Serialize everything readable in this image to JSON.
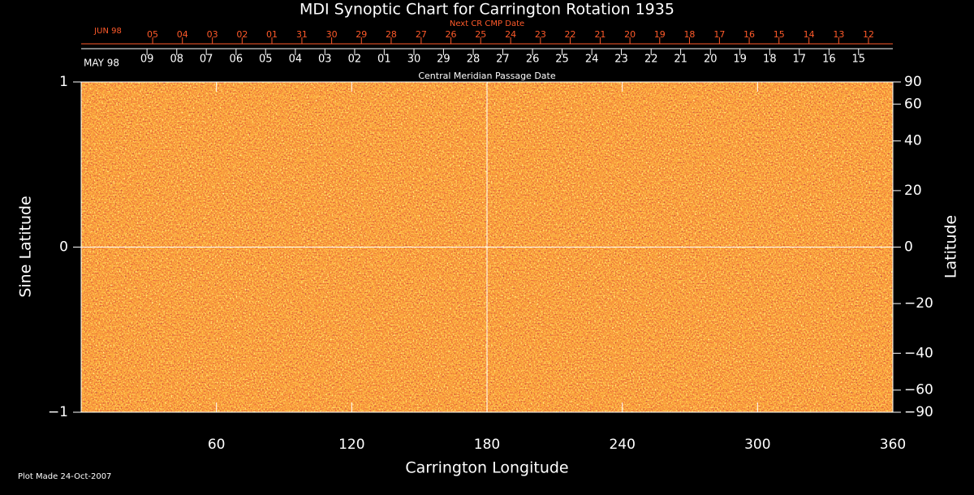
{
  "chart_data": {
    "type": "synoptic-map",
    "title": "MDI Synoptic Chart for Carrington Rotation 1935",
    "xlabel": "Carrington Longitude",
    "ylabel": "Sine Latitude",
    "y2label": "Latitude",
    "xlim": [
      0,
      360
    ],
    "xticks": [
      60,
      120,
      180,
      240,
      300,
      360
    ],
    "ylim": [
      -1,
      1
    ],
    "yticks": [
      {
        "value": -1,
        "label": "−1"
      },
      0,
      1
    ],
    "y2lim": [
      -90,
      90
    ],
    "y2scale": "sine",
    "y2ticks": [
      90,
      60,
      40,
      20,
      0,
      {
        "value": -20,
        "label": "−20"
      },
      {
        "value": -40,
        "label": "−40"
      },
      {
        "value": -60,
        "label": "−60"
      },
      {
        "value": -90,
        "label": "−90"
      }
    ],
    "guides": {
      "x": [
        180
      ],
      "y": [
        0
      ]
    },
    "top_dates": {
      "label": "Next CR CMP Date",
      "month": "JUN 98",
      "color": "#ff5a2a",
      "labels": [
        "05",
        "04",
        "03",
        "02",
        "01",
        "31",
        "30",
        "29",
        "28",
        "27",
        "26",
        "25",
        "24",
        "23",
        "22",
        "21",
        "20",
        "19",
        "18",
        "17",
        "16",
        "15",
        "14",
        "13",
        "12"
      ],
      "x": [
        31.7,
        44.9,
        58.2,
        71.4,
        84.6,
        97.9,
        111.1,
        124.3,
        137.5,
        150.8,
        164.0,
        177.2,
        190.5,
        203.7,
        216.9,
        230.2,
        243.4,
        256.6,
        269.8,
        283.1,
        296.3,
        309.5,
        322.8,
        336.0,
        349.2
      ]
    },
    "bottom_dates": {
      "label": "Central Meridian Passage Date",
      "month": "MAY 98",
      "color": "#ffffff",
      "labels": [
        "09",
        "08",
        "07",
        "06",
        "05",
        "04",
        "03",
        "02",
        "01",
        "30",
        "29",
        "28",
        "27",
        "26",
        "25",
        "24",
        "23",
        "22",
        "21",
        "20",
        "19",
        "18",
        "17",
        "16",
        "15"
      ],
      "x": [
        29.2,
        42.4,
        55.5,
        68.7,
        81.8,
        95.0,
        108.1,
        121.3,
        134.4,
        147.6,
        160.7,
        173.9,
        187.0,
        200.2,
        213.3,
        226.5,
        239.6,
        252.8,
        265.9,
        279.1,
        292.2,
        305.4,
        318.5,
        331.7,
        344.8
      ]
    },
    "footnote": "Plot Made 24-Oct-2007"
  }
}
